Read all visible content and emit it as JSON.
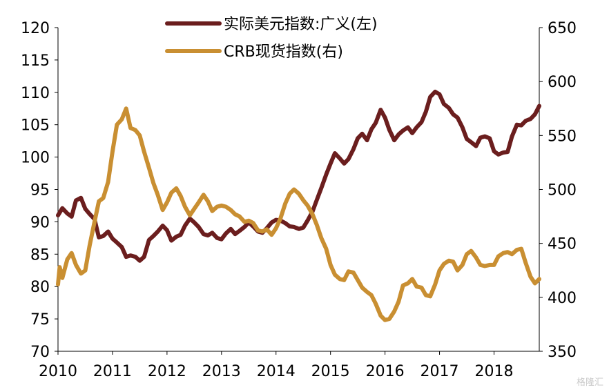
{
  "chart_data": {
    "type": "line",
    "title": "",
    "x_ticks": [
      "2010",
      "2011",
      "2012",
      "2013",
      "2014",
      "2015",
      "2016",
      "2017",
      "2018"
    ],
    "x_range": [
      2010.0,
      2018.83
    ],
    "y_left": {
      "range": [
        70,
        120
      ],
      "ticks": [
        70,
        75,
        80,
        85,
        90,
        95,
        100,
        105,
        110,
        115,
        120
      ]
    },
    "y_right": {
      "range": [
        350,
        650
      ],
      "ticks": [
        350,
        400,
        450,
        500,
        550,
        600,
        650
      ]
    },
    "legend": {
      "placement": "top-center"
    },
    "grid": false,
    "series": [
      {
        "name": "实际美元指数:广义(左)",
        "axis": "left",
        "color": "#6b1e1e",
        "points": [
          [
            2010.0,
            91.0
          ],
          [
            2010.08,
            92.1
          ],
          [
            2010.17,
            91.3
          ],
          [
            2010.25,
            90.8
          ],
          [
            2010.33,
            93.3
          ],
          [
            2010.42,
            93.7
          ],
          [
            2010.5,
            92.0
          ],
          [
            2010.58,
            91.2
          ],
          [
            2010.67,
            90.4
          ],
          [
            2010.75,
            87.6
          ],
          [
            2010.83,
            87.8
          ],
          [
            2010.92,
            88.5
          ],
          [
            2011.0,
            87.4
          ],
          [
            2011.08,
            86.8
          ],
          [
            2011.17,
            86.1
          ],
          [
            2011.25,
            84.6
          ],
          [
            2011.33,
            84.8
          ],
          [
            2011.42,
            84.6
          ],
          [
            2011.5,
            84.0
          ],
          [
            2011.58,
            84.6
          ],
          [
            2011.67,
            87.2
          ],
          [
            2011.75,
            87.8
          ],
          [
            2011.83,
            88.5
          ],
          [
            2011.92,
            89.4
          ],
          [
            2012.0,
            88.7
          ],
          [
            2012.08,
            87.1
          ],
          [
            2012.17,
            87.7
          ],
          [
            2012.25,
            88.0
          ],
          [
            2012.33,
            89.4
          ],
          [
            2012.42,
            90.5
          ],
          [
            2012.5,
            89.9
          ],
          [
            2012.58,
            89.2
          ],
          [
            2012.67,
            88.1
          ],
          [
            2012.75,
            87.9
          ],
          [
            2012.83,
            88.3
          ],
          [
            2012.92,
            87.5
          ],
          [
            2013.0,
            87.3
          ],
          [
            2013.08,
            88.2
          ],
          [
            2013.17,
            88.9
          ],
          [
            2013.25,
            88.1
          ],
          [
            2013.33,
            88.6
          ],
          [
            2013.42,
            89.2
          ],
          [
            2013.5,
            89.9
          ],
          [
            2013.58,
            89.3
          ],
          [
            2013.67,
            88.5
          ],
          [
            2013.75,
            88.3
          ],
          [
            2013.83,
            89.0
          ],
          [
            2013.92,
            89.9
          ],
          [
            2014.0,
            90.3
          ],
          [
            2014.08,
            90.2
          ],
          [
            2014.17,
            89.8
          ],
          [
            2014.25,
            89.3
          ],
          [
            2014.33,
            89.2
          ],
          [
            2014.42,
            88.9
          ],
          [
            2014.5,
            89.1
          ],
          [
            2014.58,
            90.2
          ],
          [
            2014.67,
            91.6
          ],
          [
            2014.75,
            93.4
          ],
          [
            2014.83,
            95.2
          ],
          [
            2014.92,
            97.3
          ],
          [
            2015.0,
            99.0
          ],
          [
            2015.08,
            100.6
          ],
          [
            2015.17,
            99.8
          ],
          [
            2015.25,
            99.0
          ],
          [
            2015.33,
            99.7
          ],
          [
            2015.42,
            101.2
          ],
          [
            2015.5,
            102.9
          ],
          [
            2015.58,
            103.6
          ],
          [
            2015.67,
            102.6
          ],
          [
            2015.75,
            104.3
          ],
          [
            2015.83,
            105.3
          ],
          [
            2015.92,
            107.3
          ],
          [
            2016.0,
            106.1
          ],
          [
            2016.08,
            104.2
          ],
          [
            2016.17,
            102.6
          ],
          [
            2016.25,
            103.5
          ],
          [
            2016.33,
            104.1
          ],
          [
            2016.42,
            104.6
          ],
          [
            2016.5,
            103.7
          ],
          [
            2016.58,
            104.6
          ],
          [
            2016.67,
            105.4
          ],
          [
            2016.75,
            107.0
          ],
          [
            2016.83,
            109.3
          ],
          [
            2016.92,
            110.1
          ],
          [
            2017.0,
            109.7
          ],
          [
            2017.08,
            108.2
          ],
          [
            2017.17,
            107.6
          ],
          [
            2017.25,
            106.6
          ],
          [
            2017.33,
            106.1
          ],
          [
            2017.42,
            104.6
          ],
          [
            2017.5,
            102.8
          ],
          [
            2017.58,
            102.3
          ],
          [
            2017.67,
            101.7
          ],
          [
            2017.75,
            103.0
          ],
          [
            2017.83,
            103.2
          ],
          [
            2017.92,
            102.9
          ],
          [
            2018.0,
            100.9
          ],
          [
            2018.08,
            100.4
          ],
          [
            2018.17,
            100.7
          ],
          [
            2018.25,
            100.8
          ],
          [
            2018.33,
            103.2
          ],
          [
            2018.42,
            105.0
          ],
          [
            2018.5,
            104.9
          ],
          [
            2018.58,
            105.6
          ],
          [
            2018.67,
            105.9
          ],
          [
            2018.75,
            106.6
          ],
          [
            2018.83,
            107.9
          ]
        ]
      },
      {
        "name": "CRB现货指数(右)",
        "axis": "right",
        "color": "#c98f32",
        "points": [
          [
            2010.0,
            412
          ],
          [
            2010.03,
            428
          ],
          [
            2010.08,
            418
          ],
          [
            2010.17,
            435
          ],
          [
            2010.25,
            441
          ],
          [
            2010.33,
            430
          ],
          [
            2010.42,
            422
          ],
          [
            2010.5,
            425
          ],
          [
            2010.58,
            448
          ],
          [
            2010.67,
            470
          ],
          [
            2010.75,
            489
          ],
          [
            2010.83,
            492
          ],
          [
            2010.92,
            507
          ],
          [
            2011.0,
            535
          ],
          [
            2011.08,
            560
          ],
          [
            2011.17,
            565
          ],
          [
            2011.25,
            575
          ],
          [
            2011.33,
            557
          ],
          [
            2011.42,
            555
          ],
          [
            2011.5,
            550
          ],
          [
            2011.58,
            535
          ],
          [
            2011.67,
            520
          ],
          [
            2011.75,
            506
          ],
          [
            2011.83,
            495
          ],
          [
            2011.92,
            481
          ],
          [
            2012.0,
            488
          ],
          [
            2012.08,
            497
          ],
          [
            2012.17,
            501
          ],
          [
            2012.25,
            494
          ],
          [
            2012.33,
            484
          ],
          [
            2012.42,
            476
          ],
          [
            2012.5,
            482
          ],
          [
            2012.58,
            488
          ],
          [
            2012.67,
            495
          ],
          [
            2012.75,
            489
          ],
          [
            2012.83,
            480
          ],
          [
            2012.92,
            484
          ],
          [
            2013.0,
            485
          ],
          [
            2013.08,
            484
          ],
          [
            2013.17,
            481
          ],
          [
            2013.25,
            477
          ],
          [
            2013.33,
            475
          ],
          [
            2013.42,
            470
          ],
          [
            2013.5,
            471
          ],
          [
            2013.58,
            469
          ],
          [
            2013.67,
            462
          ],
          [
            2013.75,
            461
          ],
          [
            2013.83,
            463
          ],
          [
            2013.92,
            458
          ],
          [
            2014.0,
            464
          ],
          [
            2014.08,
            473
          ],
          [
            2014.17,
            487
          ],
          [
            2014.25,
            496
          ],
          [
            2014.33,
            500
          ],
          [
            2014.42,
            496
          ],
          [
            2014.5,
            490
          ],
          [
            2014.58,
            485
          ],
          [
            2014.67,
            477
          ],
          [
            2014.75,
            467
          ],
          [
            2014.83,
            455
          ],
          [
            2014.92,
            445
          ],
          [
            2015.0,
            430
          ],
          [
            2015.08,
            421
          ],
          [
            2015.17,
            417
          ],
          [
            2015.25,
            416
          ],
          [
            2015.33,
            424
          ],
          [
            2015.42,
            423
          ],
          [
            2015.5,
            416
          ],
          [
            2015.58,
            409
          ],
          [
            2015.67,
            405
          ],
          [
            2015.75,
            402
          ],
          [
            2015.83,
            394
          ],
          [
            2015.92,
            383
          ],
          [
            2016.0,
            379
          ],
          [
            2016.08,
            380
          ],
          [
            2016.17,
            387
          ],
          [
            2016.25,
            396
          ],
          [
            2016.33,
            411
          ],
          [
            2016.42,
            413
          ],
          [
            2016.5,
            417
          ],
          [
            2016.58,
            410
          ],
          [
            2016.67,
            409
          ],
          [
            2016.75,
            402
          ],
          [
            2016.83,
            401
          ],
          [
            2016.92,
            412
          ],
          [
            2017.0,
            425
          ],
          [
            2017.08,
            431
          ],
          [
            2017.17,
            434
          ],
          [
            2017.25,
            433
          ],
          [
            2017.33,
            425
          ],
          [
            2017.42,
            430
          ],
          [
            2017.5,
            440
          ],
          [
            2017.58,
            443
          ],
          [
            2017.67,
            437
          ],
          [
            2017.75,
            430
          ],
          [
            2017.83,
            429
          ],
          [
            2017.92,
            430
          ],
          [
            2018.0,
            430
          ],
          [
            2018.08,
            438
          ],
          [
            2018.17,
            441
          ],
          [
            2018.25,
            442
          ],
          [
            2018.33,
            440
          ],
          [
            2018.42,
            444
          ],
          [
            2018.5,
            445
          ],
          [
            2018.58,
            432
          ],
          [
            2018.67,
            419
          ],
          [
            2018.75,
            413
          ],
          [
            2018.83,
            417
          ]
        ]
      }
    ]
  },
  "watermark": "格隆汇"
}
